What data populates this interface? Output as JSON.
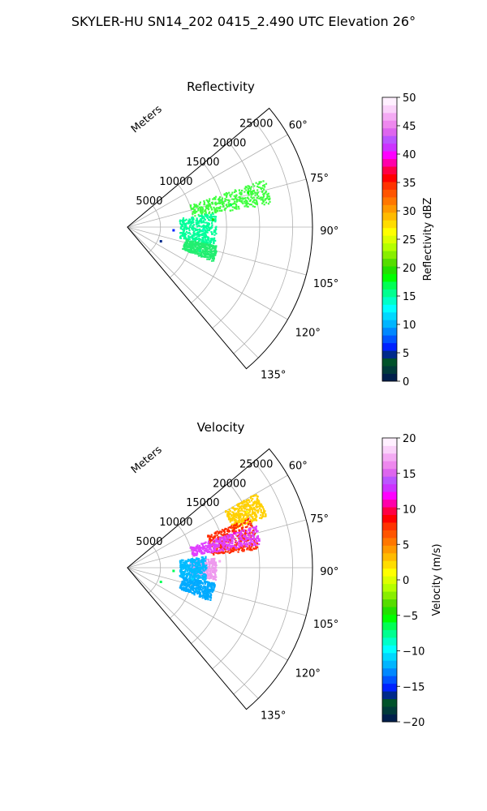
{
  "figure": {
    "title": "SKYLER-HU  SN14_202  0415_2.490 UTC Elevation 26°"
  },
  "chart_data": [
    {
      "type": "polar-sector",
      "title": "Reflectivity",
      "radial_axis_label": "Meters",
      "radial_ticks": [
        5000,
        10000,
        15000,
        20000,
        25000
      ],
      "radial_tick_labels": [
        "5000",
        "10000",
        "15000",
        "20000",
        "25000"
      ],
      "rmax": 28000,
      "theta_range_deg": [
        50,
        140
      ],
      "theta_ticks_deg": [
        60,
        75,
        90,
        105,
        120,
        135
      ],
      "theta_tick_labels": [
        "60°",
        "75°",
        "90°",
        "105°",
        "120°",
        "135°"
      ],
      "grid": true,
      "colorbar": {
        "label": "Reflectivity dBZ",
        "range": [
          0,
          50
        ],
        "ticks": [
          0,
          5,
          10,
          15,
          20,
          25,
          30,
          35,
          40,
          45,
          50
        ],
        "tick_labels": [
          "0",
          "5",
          "10",
          "15",
          "20",
          "25",
          "30",
          "35",
          "40",
          "45",
          "50"
        ],
        "colors": [
          "#001f4c",
          "#003a3a",
          "#00522a",
          "#002a8a",
          "#0022ff",
          "#0055ff",
          "#0088ff",
          "#00b5ff",
          "#00d8ff",
          "#00ffff",
          "#00ffc8",
          "#00ff90",
          "#00ff55",
          "#00ff00",
          "#22e000",
          "#55dd00",
          "#88ee00",
          "#b5ff00",
          "#ddff00",
          "#ffff00",
          "#ffdd00",
          "#ffbb00",
          "#ff9900",
          "#ff7700",
          "#ff5500",
          "#ff3300",
          "#ff0000",
          "#ff0044",
          "#ff00aa",
          "#ff00ff",
          "#cc33ff",
          "#bb55ff",
          "#dd66ee",
          "#ee88ee",
          "#f4aaf4",
          "#fad2fa",
          "#fff0ff"
        ]
      },
      "swaths": [
        {
          "r_range": [
            10000,
            22000
          ],
          "theta_range": [
            71,
            81
          ],
          "color": "#40ff40"
        },
        {
          "r_range": [
            8000,
            13500
          ],
          "theta_range": [
            81,
            102
          ],
          "color": "#00ff9a"
        },
        {
          "r_range": [
            9000,
            14000
          ],
          "theta_range": [
            102,
            112
          ],
          "color": "#22ee70"
        }
      ],
      "echo_values": [
        {
          "r": 19000,
          "theta": 74,
          "value": 18
        },
        {
          "r": 16000,
          "theta": 78,
          "value": 17
        },
        {
          "r": 13000,
          "theta": 85,
          "value": 19
        },
        {
          "r": 11500,
          "theta": 92,
          "value": 14
        },
        {
          "r": 10500,
          "theta": 100,
          "value": 16
        },
        {
          "r": 11500,
          "theta": 108,
          "value": 15
        },
        {
          "r": 7000,
          "theta": 94,
          "value": 6
        },
        {
          "r": 5500,
          "theta": 113,
          "value": 5
        }
      ]
    },
    {
      "type": "polar-sector",
      "title": "Velocity",
      "radial_axis_label": "Meters",
      "radial_ticks": [
        5000,
        10000,
        15000,
        20000,
        25000
      ],
      "radial_tick_labels": [
        "5000",
        "10000",
        "15000",
        "20000",
        "25000"
      ],
      "rmax": 28000,
      "theta_range_deg": [
        50,
        140
      ],
      "theta_ticks_deg": [
        60,
        75,
        90,
        105,
        120,
        135
      ],
      "theta_tick_labels": [
        "60°",
        "75°",
        "90°",
        "105°",
        "120°",
        "135°"
      ],
      "grid": true,
      "colorbar": {
        "label": "Velocity (m/s)",
        "range": [
          -20,
          20
        ],
        "ticks": [
          -20,
          -15,
          -10,
          -5,
          0,
          5,
          10,
          15,
          20
        ],
        "tick_labels": [
          "−20",
          "−15",
          "−10",
          "−5",
          "0",
          "5",
          "10",
          "15",
          "20"
        ],
        "colors": [
          "#001f4c",
          "#003a3a",
          "#00522a",
          "#002a8a",
          "#0022ff",
          "#0055ff",
          "#0088ff",
          "#00b5ff",
          "#00d8ff",
          "#00ffff",
          "#00ffc8",
          "#00ff90",
          "#00ff55",
          "#00ff00",
          "#22e000",
          "#55dd00",
          "#88ee00",
          "#b5ff00",
          "#ddff00",
          "#ffff00",
          "#ffdd00",
          "#ffbb00",
          "#ff9900",
          "#ff7700",
          "#ff5500",
          "#ff3300",
          "#ff0000",
          "#ff0044",
          "#ff00aa",
          "#ff00ff",
          "#cc33ff",
          "#bb55ff",
          "#dd66ee",
          "#ee88ee",
          "#f4aaf4",
          "#fad2fa",
          "#fff0ff"
        ]
      },
      "swaths": [
        {
          "r_range": [
            17000,
            22500
          ],
          "theta_range": [
            60,
            70
          ],
          "color": "#ffd000"
        },
        {
          "r_range": [
            13000,
            20000
          ],
          "theta_range": [
            68,
            82
          ],
          "color": "#ff2a00"
        },
        {
          "r_range": [
            10000,
            20500
          ],
          "theta_range": [
            72,
            80
          ],
          "color": "#e040ff"
        },
        {
          "r_range": [
            9500,
            13500
          ],
          "theta_range": [
            84,
            98
          ],
          "color": "#ee99ee"
        },
        {
          "r_range": [
            8000,
            12000
          ],
          "theta_range": [
            82,
            100
          ],
          "color": "#00bbff"
        },
        {
          "r_range": [
            8500,
            13500
          ],
          "theta_range": [
            100,
            112
          ],
          "color": "#00aaff"
        }
      ],
      "echo_values": [
        {
          "r": 20000,
          "theta": 65,
          "value": 1
        },
        {
          "r": 17000,
          "theta": 72,
          "value": 11
        },
        {
          "r": 19000,
          "theta": 76,
          "value": 15
        },
        {
          "r": 14000,
          "theta": 86,
          "value": 17
        },
        {
          "r": 10500,
          "theta": 90,
          "value": -12
        },
        {
          "r": 10000,
          "theta": 100,
          "value": -11
        },
        {
          "r": 11000,
          "theta": 108,
          "value": -12
        },
        {
          "r": 7000,
          "theta": 94,
          "value": -6
        },
        {
          "r": 5500,
          "theta": 113,
          "value": -6
        }
      ]
    }
  ]
}
